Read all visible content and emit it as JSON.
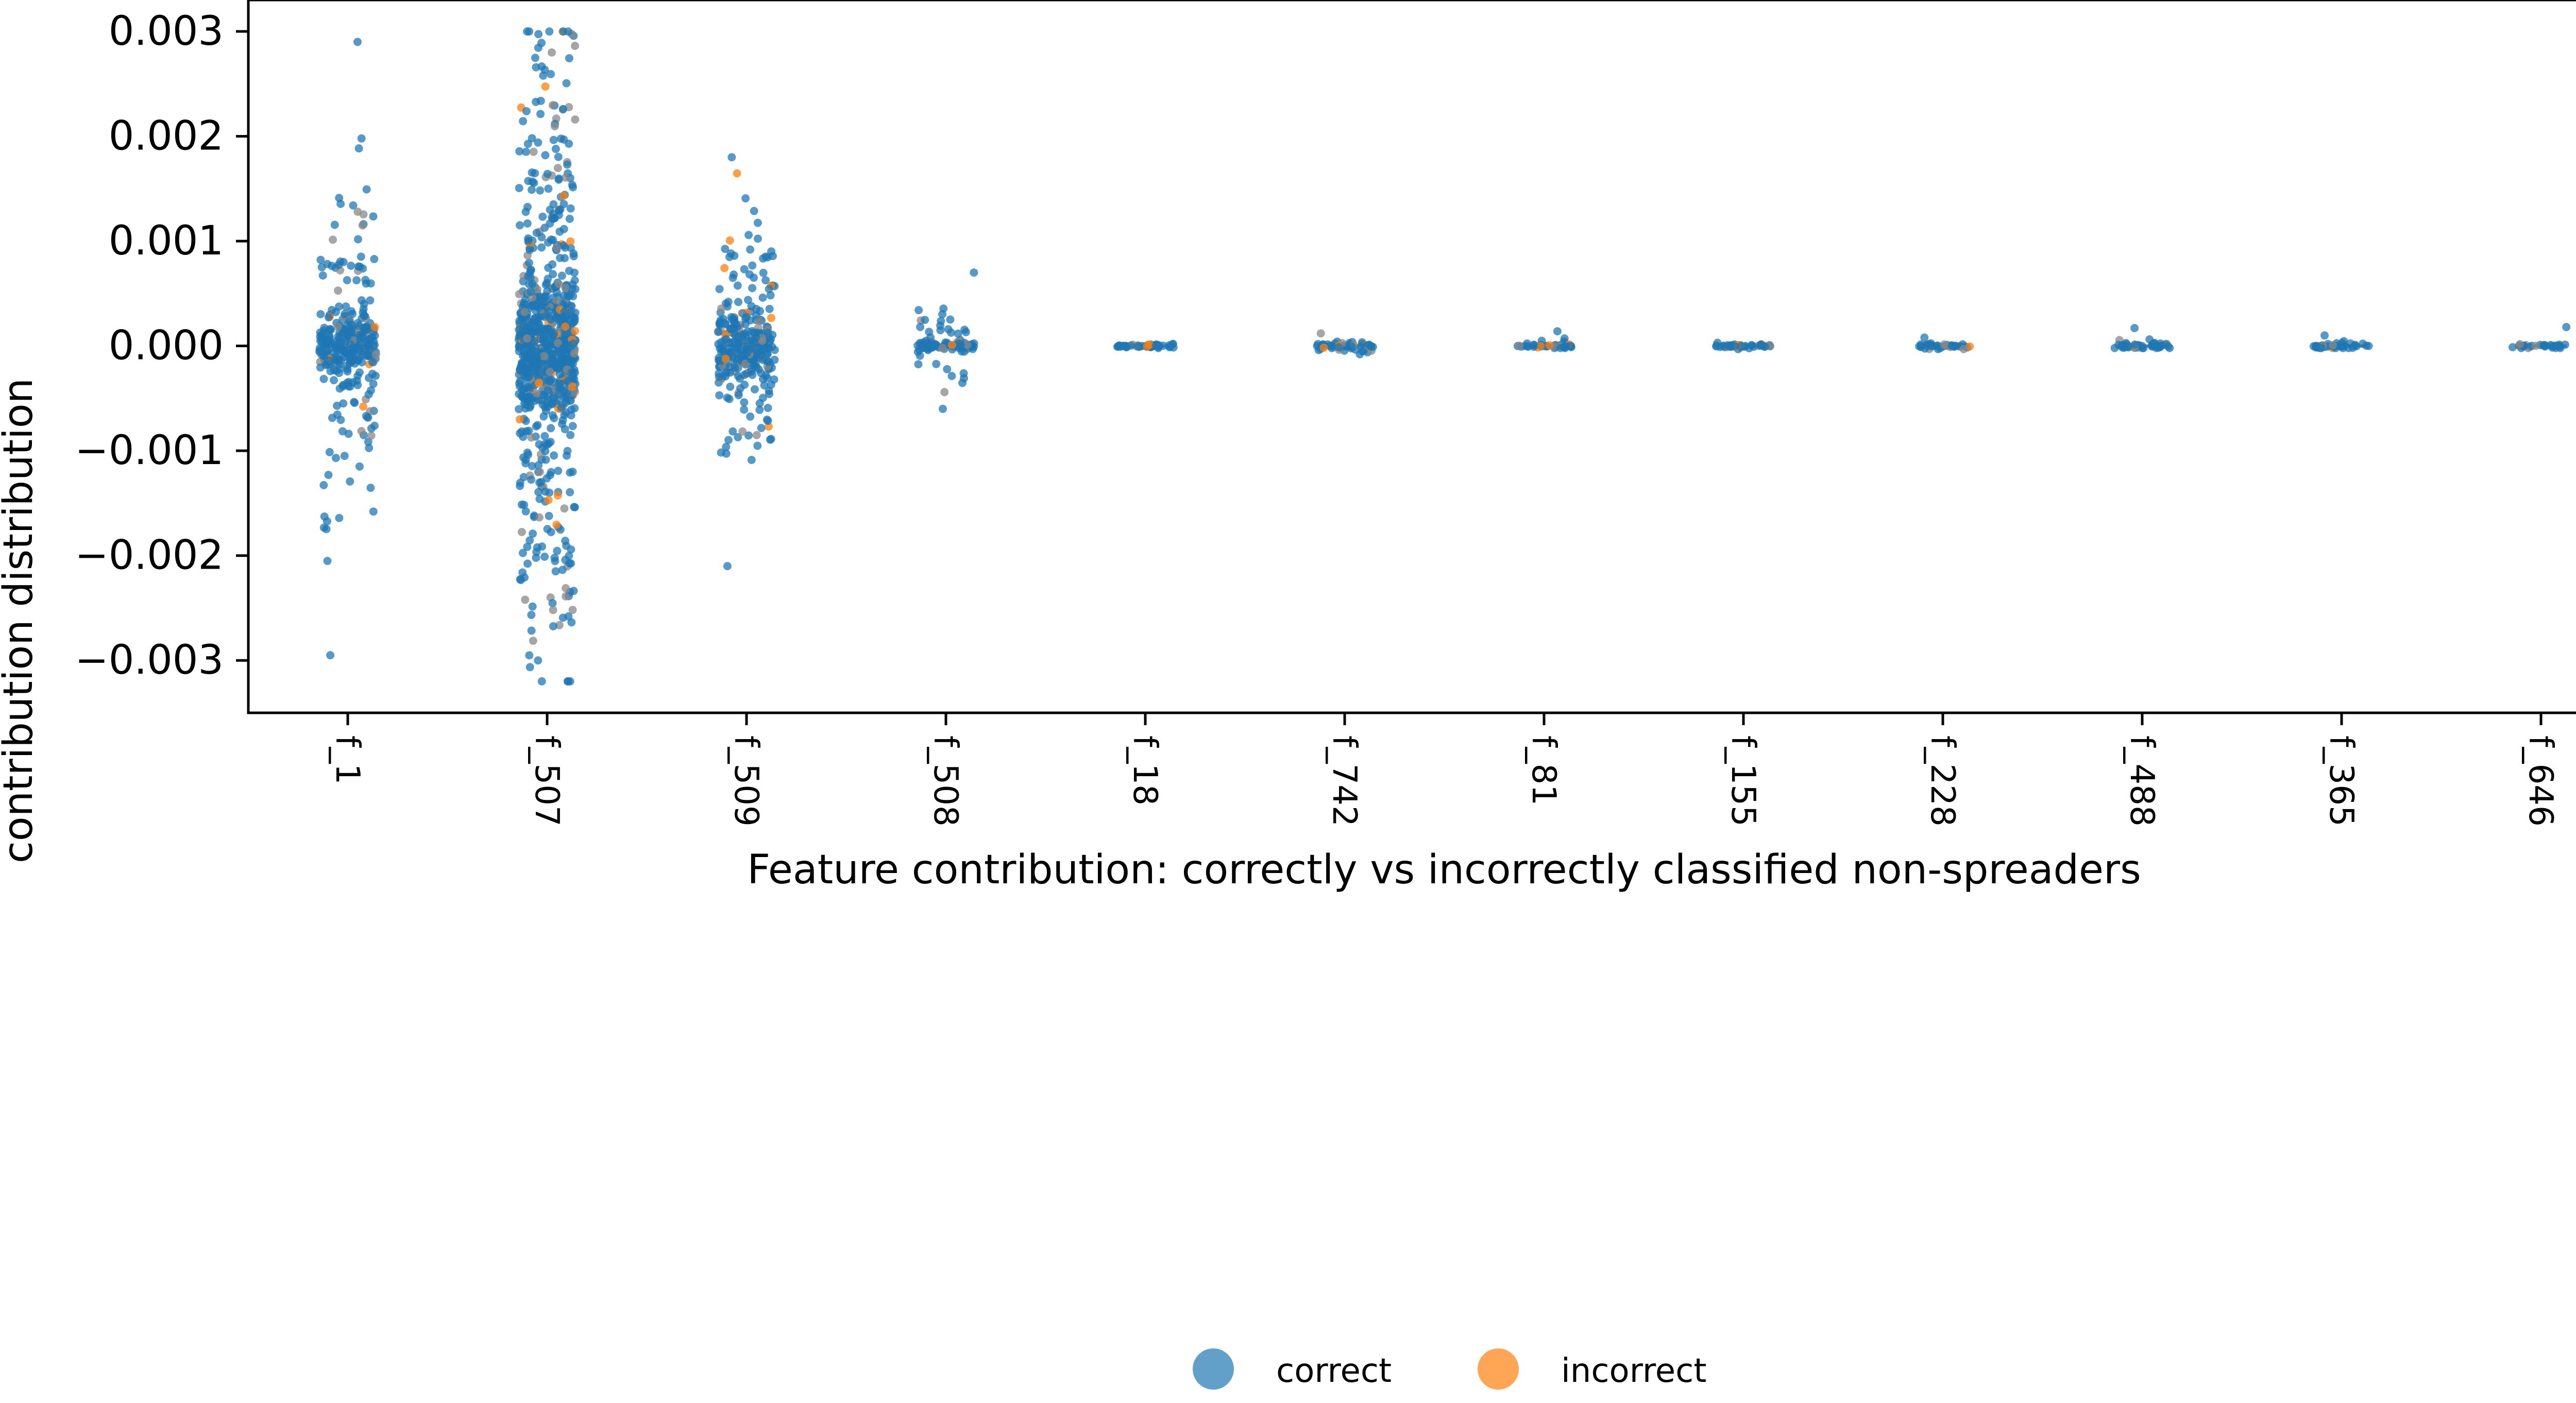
{
  "chart_data": {
    "type": "scatter",
    "subtype": "strip",
    "xlabel": "Feature contribution: correctly vs incorrectly classified non-spreaders",
    "ylabel": "contribution distribution",
    "categories": [
      "f_1",
      "f_507",
      "f_509",
      "f_508",
      "f_18",
      "f_742",
      "f_81",
      "f_155",
      "f_228",
      "f_488",
      "f_365",
      "f_646"
    ],
    "ylim": [
      -0.0035,
      0.0033
    ],
    "yticks": [
      -0.003,
      -0.002,
      -0.001,
      0.0,
      0.001,
      0.002,
      0.003
    ],
    "ytick_labels": [
      "−0.003",
      "−0.002",
      "−0.001",
      "0.000",
      "0.001",
      "0.002",
      "0.003"
    ],
    "grid": false,
    "legend": {
      "position": "bottom-center"
    },
    "series": [
      {
        "name": "correct",
        "color": "#1f77b4"
      },
      {
        "name": "incorrect",
        "color": "#ff7f0e"
      }
    ],
    "distribution": [
      {
        "category": "f_1",
        "min": -0.00295,
        "max": 0.0029,
        "core": 0.0003,
        "spread": 0.0008,
        "n": 320
      },
      {
        "category": "f_507",
        "min": -0.0032,
        "max": 0.003,
        "core": 0.0006,
        "spread": 0.0015,
        "n": 900
      },
      {
        "category": "f_509",
        "min": -0.0021,
        "max": 0.0018,
        "core": 0.0003,
        "spread": 0.0006,
        "n": 320
      },
      {
        "category": "f_508",
        "min": -0.0006,
        "max": 0.0007,
        "core": 5e-05,
        "spread": 0.0002,
        "n": 90
      },
      {
        "category": "f_18",
        "min": -2e-05,
        "max": 2e-05,
        "core": 1e-05,
        "spread": 1e-05,
        "n": 50
      },
      {
        "category": "f_742",
        "min": -8e-05,
        "max": 0.00012,
        "core": 2e-05,
        "spread": 3e-05,
        "n": 55
      },
      {
        "category": "f_81",
        "min": -2e-05,
        "max": 0.00014,
        "core": 1e-05,
        "spread": 3e-05,
        "n": 45
      },
      {
        "category": "f_155",
        "min": -3e-05,
        "max": 3e-05,
        "core": 1e-05,
        "spread": 1e-05,
        "n": 45
      },
      {
        "category": "f_228",
        "min": -3e-05,
        "max": 8e-05,
        "core": 1e-05,
        "spread": 2e-05,
        "n": 40
      },
      {
        "category": "f_488",
        "min": -2e-05,
        "max": 0.00017,
        "core": 2e-05,
        "spread": 4e-05,
        "n": 45
      },
      {
        "category": "f_365",
        "min": -2e-05,
        "max": 0.0001,
        "core": 1e-05,
        "spread": 2e-05,
        "n": 40
      },
      {
        "category": "f_646",
        "min": -2e-05,
        "max": 0.00018,
        "core": 1e-05,
        "spread": 2e-05,
        "n": 30
      }
    ]
  }
}
